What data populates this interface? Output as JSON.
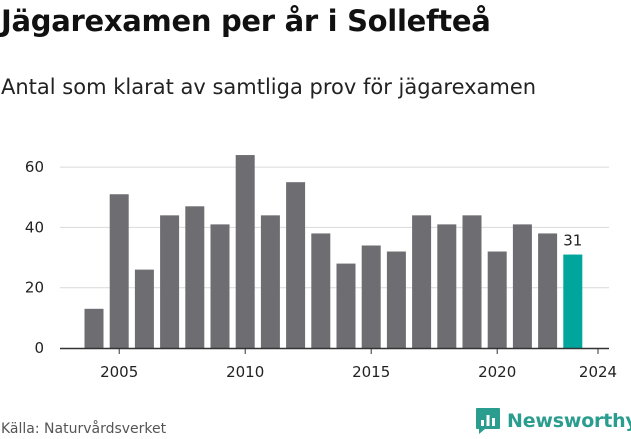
{
  "title": "Jägarexamen per år i Sollefteå",
  "subtitle": "Antal som klarat av samtliga prov för jägarexamen",
  "source": "Källa: Naturvårdsverket",
  "logo": {
    "text": "Newsworthy",
    "icon": "bar-chart-speech-bubble-icon",
    "color": "#2a9d8f"
  },
  "colors": {
    "bar": "#6e6d72",
    "highlight": "#00a69c",
    "grid": "#d9d9d9",
    "axis": "#333333",
    "text": "#222222"
  },
  "chart_data": {
    "type": "bar",
    "x": [
      2004,
      2005,
      2006,
      2007,
      2008,
      2009,
      2010,
      2011,
      2012,
      2013,
      2014,
      2015,
      2016,
      2017,
      2018,
      2019,
      2020,
      2021,
      2022,
      2023,
      2024
    ],
    "values": [
      13,
      51,
      26,
      44,
      47,
      41,
      64,
      44,
      55,
      38,
      28,
      34,
      32,
      44,
      41,
      44,
      32,
      41,
      38,
      31,
      null
    ],
    "highlight_index": 19,
    "annotations": [
      {
        "x_index": 19,
        "label": "31"
      }
    ],
    "xticks": [
      "2005",
      "2010",
      "2015",
      "2020",
      "2024"
    ],
    "yticks": [
      "0",
      "20",
      "40",
      "60"
    ],
    "ylim": [
      0,
      67
    ],
    "grid": true,
    "title": "Jägarexamen per år i Sollefteå",
    "subtitle": "Antal som klarat av samtliga prov för jägarexamen"
  }
}
